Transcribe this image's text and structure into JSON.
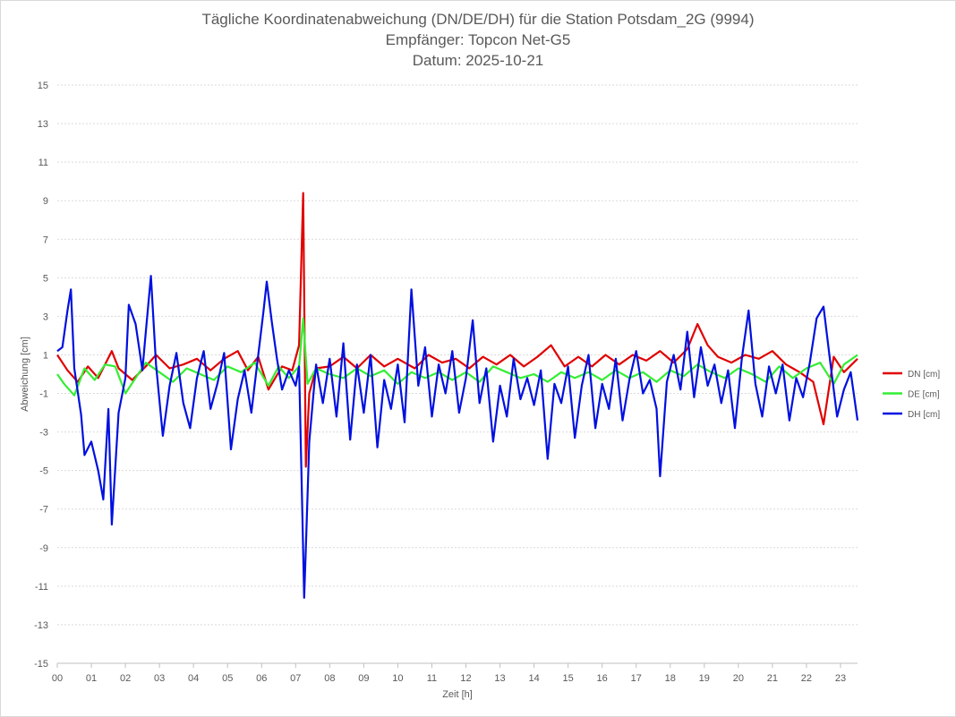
{
  "chart_data": {
    "type": "line",
    "title": "Tägliche Koordinatenabweichung (DN/DE/DH) für die Station Potsdam_2G (9994)",
    "subtitle": "Empfänger: Topcon Net-G5",
    "date_label": "Datum: 2025-10-21",
    "xlabel": "Zeit [h]",
    "ylabel": "Abweichung [cm]",
    "xlim": [
      0,
      23.5
    ],
    "ylim": [
      -15,
      15
    ],
    "y_ticks": [
      "15",
      "13",
      "11",
      "9",
      "7",
      "5",
      "3",
      "1",
      "-1",
      "-3",
      "-5",
      "-7",
      "-9",
      "-11",
      "-13",
      "-15"
    ],
    "x_ticks": [
      "00",
      "01",
      "02",
      "03",
      "04",
      "05",
      "06",
      "07",
      "08",
      "09",
      "10",
      "11",
      "12",
      "13",
      "14",
      "15",
      "16",
      "17",
      "18",
      "19",
      "20",
      "21",
      "22",
      "23"
    ],
    "grid": true,
    "legend_position": "right",
    "series": [
      {
        "name": "DN [cm]",
        "color": "#e00000",
        "points": [
          [
            0,
            1.0
          ],
          [
            0.3,
            0.2
          ],
          [
            0.6,
            -0.4
          ],
          [
            0.9,
            0.4
          ],
          [
            1.2,
            -0.2
          ],
          [
            1.6,
            1.2
          ],
          [
            1.8,
            0.3
          ],
          [
            2.2,
            -0.3
          ],
          [
            2.6,
            0.4
          ],
          [
            2.9,
            1.0
          ],
          [
            3.3,
            0.3
          ],
          [
            3.7,
            0.5
          ],
          [
            4.1,
            0.8
          ],
          [
            4.5,
            0.2
          ],
          [
            4.9,
            0.8
          ],
          [
            5.3,
            1.2
          ],
          [
            5.6,
            0.2
          ],
          [
            5.9,
            0.9
          ],
          [
            6.2,
            -0.8
          ],
          [
            6.6,
            0.4
          ],
          [
            6.9,
            0.2
          ],
          [
            7.1,
            1.5
          ],
          [
            7.22,
            9.4
          ],
          [
            7.3,
            -4.8
          ],
          [
            7.4,
            -1.0
          ],
          [
            7.6,
            0.3
          ],
          [
            8.0,
            0.4
          ],
          [
            8.4,
            0.9
          ],
          [
            8.8,
            0.3
          ],
          [
            9.2,
            1.0
          ],
          [
            9.6,
            0.4
          ],
          [
            10.0,
            0.8
          ],
          [
            10.5,
            0.3
          ],
          [
            10.9,
            1.0
          ],
          [
            11.3,
            0.6
          ],
          [
            11.7,
            0.8
          ],
          [
            12.1,
            0.3
          ],
          [
            12.5,
            0.9
          ],
          [
            12.9,
            0.5
          ],
          [
            13.3,
            1.0
          ],
          [
            13.7,
            0.4
          ],
          [
            14.1,
            0.9
          ],
          [
            14.5,
            1.5
          ],
          [
            14.9,
            0.4
          ],
          [
            15.3,
            0.9
          ],
          [
            15.7,
            0.4
          ],
          [
            16.1,
            1.0
          ],
          [
            16.5,
            0.5
          ],
          [
            16.9,
            1.0
          ],
          [
            17.3,
            0.7
          ],
          [
            17.7,
            1.2
          ],
          [
            18.1,
            0.6
          ],
          [
            18.5,
            1.3
          ],
          [
            18.8,
            2.6
          ],
          [
            19.1,
            1.5
          ],
          [
            19.4,
            0.9
          ],
          [
            19.8,
            0.6
          ],
          [
            20.2,
            1.0
          ],
          [
            20.6,
            0.8
          ],
          [
            21.0,
            1.2
          ],
          [
            21.4,
            0.5
          ],
          [
            21.8,
            0.1
          ],
          [
            22.2,
            -0.4
          ],
          [
            22.5,
            -2.6
          ],
          [
            22.8,
            0.9
          ],
          [
            23.1,
            0.1
          ],
          [
            23.5,
            0.8
          ]
        ]
      },
      {
        "name": "DE [cm]",
        "color": "#33ee33",
        "points": [
          [
            0,
            0.0
          ],
          [
            0.2,
            -0.5
          ],
          [
            0.5,
            -1.1
          ],
          [
            0.8,
            0.3
          ],
          [
            1.1,
            -0.3
          ],
          [
            1.4,
            0.5
          ],
          [
            1.7,
            0.4
          ],
          [
            2.0,
            -1.0
          ],
          [
            2.3,
            -0.2
          ],
          [
            2.6,
            0.6
          ],
          [
            3.0,
            0.1
          ],
          [
            3.4,
            -0.4
          ],
          [
            3.8,
            0.3
          ],
          [
            4.2,
            0.0
          ],
          [
            4.6,
            -0.3
          ],
          [
            5.0,
            0.4
          ],
          [
            5.4,
            0.1
          ],
          [
            5.8,
            0.6
          ],
          [
            6.2,
            -0.6
          ],
          [
            6.5,
            0.4
          ],
          [
            6.8,
            -0.2
          ],
          [
            7.1,
            0.4
          ],
          [
            7.22,
            2.9
          ],
          [
            7.35,
            -0.5
          ],
          [
            7.6,
            0.3
          ],
          [
            8.0,
            0.0
          ],
          [
            8.4,
            -0.2
          ],
          [
            8.8,
            0.3
          ],
          [
            9.2,
            -0.1
          ],
          [
            9.6,
            0.2
          ],
          [
            10.0,
            -0.5
          ],
          [
            10.4,
            0.1
          ],
          [
            10.8,
            -0.2
          ],
          [
            11.2,
            0.1
          ],
          [
            11.6,
            -0.3
          ],
          [
            12.0,
            0.1
          ],
          [
            12.4,
            -0.4
          ],
          [
            12.8,
            0.4
          ],
          [
            13.2,
            0.1
          ],
          [
            13.6,
            -0.2
          ],
          [
            14.0,
            0.0
          ],
          [
            14.4,
            -0.4
          ],
          [
            14.8,
            0.1
          ],
          [
            15.2,
            -0.2
          ],
          [
            15.6,
            0.1
          ],
          [
            16.0,
            -0.3
          ],
          [
            16.4,
            0.2
          ],
          [
            16.8,
            -0.2
          ],
          [
            17.2,
            0.1
          ],
          [
            17.6,
            -0.4
          ],
          [
            18.0,
            0.2
          ],
          [
            18.4,
            -0.1
          ],
          [
            18.8,
            0.5
          ],
          [
            19.2,
            0.1
          ],
          [
            19.6,
            -0.2
          ],
          [
            20.0,
            0.3
          ],
          [
            20.4,
            0.0
          ],
          [
            20.8,
            -0.4
          ],
          [
            21.2,
            0.4
          ],
          [
            21.6,
            -0.2
          ],
          [
            22.0,
            0.3
          ],
          [
            22.4,
            0.6
          ],
          [
            22.8,
            -0.5
          ],
          [
            23.1,
            0.5
          ],
          [
            23.5,
            1.0
          ]
        ]
      },
      {
        "name": "DH [cm]",
        "color": "#0010e0",
        "points": [
          [
            0,
            1.2
          ],
          [
            0.15,
            1.4
          ],
          [
            0.3,
            3.3
          ],
          [
            0.4,
            4.4
          ],
          [
            0.5,
            0.3
          ],
          [
            0.7,
            -2.1
          ],
          [
            0.8,
            -4.2
          ],
          [
            1.0,
            -3.5
          ],
          [
            1.2,
            -5.0
          ],
          [
            1.35,
            -6.5
          ],
          [
            1.5,
            -1.8
          ],
          [
            1.6,
            -7.8
          ],
          [
            1.8,
            -2.0
          ],
          [
            2.0,
            -0.2
          ],
          [
            2.1,
            3.6
          ],
          [
            2.3,
            2.6
          ],
          [
            2.5,
            0.2
          ],
          [
            2.6,
            2.2
          ],
          [
            2.75,
            5.1
          ],
          [
            2.9,
            0.5
          ],
          [
            3.1,
            -3.2
          ],
          [
            3.3,
            -0.6
          ],
          [
            3.5,
            1.1
          ],
          [
            3.7,
            -1.5
          ],
          [
            3.9,
            -2.8
          ],
          [
            4.1,
            -0.2
          ],
          [
            4.3,
            1.2
          ],
          [
            4.5,
            -1.8
          ],
          [
            4.7,
            -0.5
          ],
          [
            4.9,
            1.1
          ],
          [
            5.1,
            -3.9
          ],
          [
            5.3,
            -1.3
          ],
          [
            5.5,
            0.2
          ],
          [
            5.7,
            -2.0
          ],
          [
            5.9,
            1.0
          ],
          [
            6.05,
            3.2
          ],
          [
            6.15,
            4.8
          ],
          [
            6.3,
            2.7
          ],
          [
            6.45,
            0.8
          ],
          [
            6.6,
            -0.8
          ],
          [
            6.8,
            0.2
          ],
          [
            7.0,
            -0.6
          ],
          [
            7.1,
            0.4
          ],
          [
            7.2,
            -7.5
          ],
          [
            7.25,
            -11.6
          ],
          [
            7.3,
            -9.0
          ],
          [
            7.4,
            -3.5
          ],
          [
            7.6,
            0.5
          ],
          [
            7.8,
            -1.5
          ],
          [
            8.0,
            0.8
          ],
          [
            8.2,
            -2.2
          ],
          [
            8.4,
            1.6
          ],
          [
            8.6,
            -3.4
          ],
          [
            8.8,
            0.5
          ],
          [
            9.0,
            -2.0
          ],
          [
            9.2,
            1.0
          ],
          [
            9.4,
            -3.8
          ],
          [
            9.6,
            -0.3
          ],
          [
            9.8,
            -1.8
          ],
          [
            10.0,
            0.5
          ],
          [
            10.2,
            -2.5
          ],
          [
            10.4,
            4.4
          ],
          [
            10.6,
            -0.6
          ],
          [
            10.8,
            1.4
          ],
          [
            11.0,
            -2.2
          ],
          [
            11.2,
            0.5
          ],
          [
            11.4,
            -1.0
          ],
          [
            11.6,
            1.2
          ],
          [
            11.8,
            -2.0
          ],
          [
            12.0,
            -0.2
          ],
          [
            12.2,
            2.8
          ],
          [
            12.4,
            -1.5
          ],
          [
            12.6,
            0.3
          ],
          [
            12.8,
            -3.5
          ],
          [
            13.0,
            -0.6
          ],
          [
            13.2,
            -2.2
          ],
          [
            13.4,
            0.8
          ],
          [
            13.6,
            -1.3
          ],
          [
            13.8,
            -0.2
          ],
          [
            14.0,
            -1.6
          ],
          [
            14.2,
            0.2
          ],
          [
            14.4,
            -4.4
          ],
          [
            14.6,
            -0.5
          ],
          [
            14.8,
            -1.5
          ],
          [
            15.0,
            0.4
          ],
          [
            15.2,
            -3.3
          ],
          [
            15.4,
            -0.6
          ],
          [
            15.6,
            1.0
          ],
          [
            15.8,
            -2.8
          ],
          [
            16.0,
            -0.5
          ],
          [
            16.2,
            -1.8
          ],
          [
            16.4,
            0.8
          ],
          [
            16.6,
            -2.4
          ],
          [
            16.8,
            -0.3
          ],
          [
            17.0,
            1.2
          ],
          [
            17.2,
            -1.0
          ],
          [
            17.4,
            -0.3
          ],
          [
            17.6,
            -1.8
          ],
          [
            17.7,
            -5.3
          ],
          [
            17.9,
            -0.4
          ],
          [
            18.1,
            1.0
          ],
          [
            18.3,
            -0.8
          ],
          [
            18.5,
            2.2
          ],
          [
            18.7,
            -1.2
          ],
          [
            18.9,
            1.4
          ],
          [
            19.1,
            -0.6
          ],
          [
            19.3,
            0.5
          ],
          [
            19.5,
            -1.5
          ],
          [
            19.7,
            0.2
          ],
          [
            19.9,
            -2.8
          ],
          [
            20.1,
            0.8
          ],
          [
            20.3,
            3.3
          ],
          [
            20.5,
            -0.5
          ],
          [
            20.7,
            -2.2
          ],
          [
            20.9,
            0.4
          ],
          [
            21.1,
            -1.0
          ],
          [
            21.3,
            0.5
          ],
          [
            21.5,
            -2.4
          ],
          [
            21.7,
            -0.2
          ],
          [
            21.9,
            -1.2
          ],
          [
            22.1,
            0.6
          ],
          [
            22.3,
            2.9
          ],
          [
            22.5,
            3.5
          ],
          [
            22.7,
            0.6
          ],
          [
            22.9,
            -2.2
          ],
          [
            23.1,
            -0.8
          ],
          [
            23.3,
            0.1
          ],
          [
            23.5,
            -2.4
          ]
        ]
      }
    ]
  }
}
